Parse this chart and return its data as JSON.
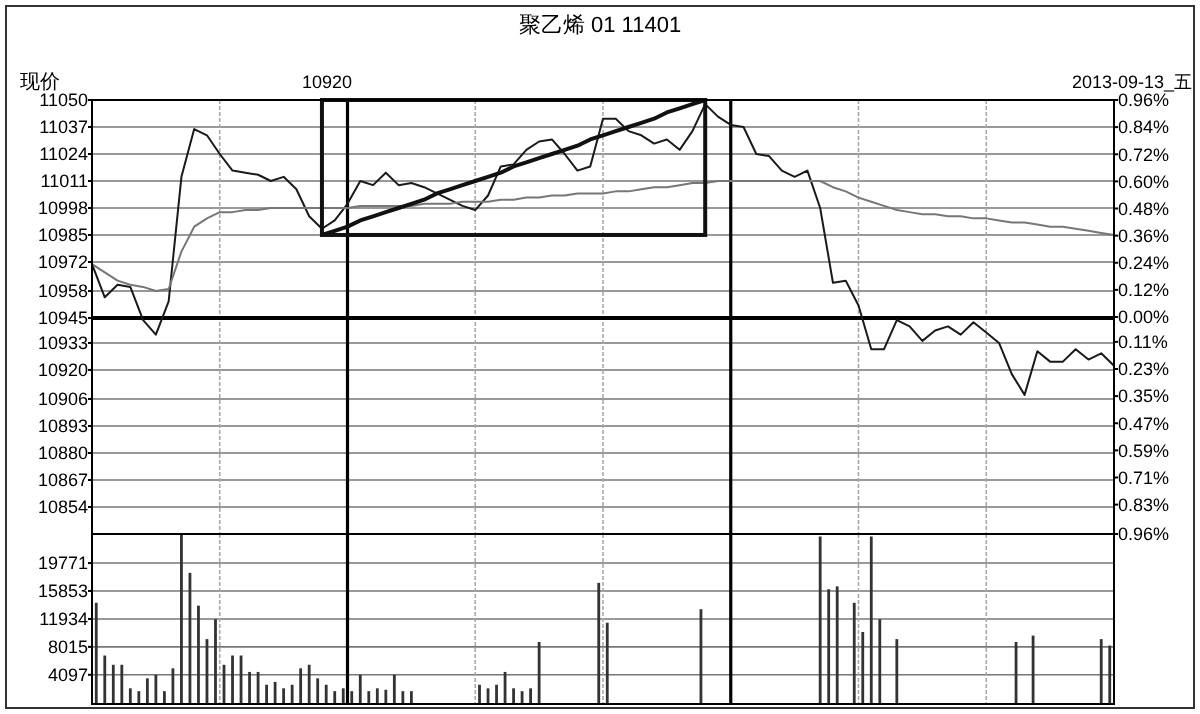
{
  "chart_data": [
    {
      "type": "line",
      "title": "聚乙烯 01 11401",
      "ylabel": "现价",
      "annotations": [
        "10920",
        "2013-09-13_五"
      ],
      "categories": [
        null,
        null,
        null,
        null,
        null,
        null,
        null,
        null,
        null,
        null,
        null,
        null,
        null,
        null,
        null,
        null,
        null,
        null,
        null,
        null,
        null,
        null,
        null,
        null,
        null,
        null,
        null,
        null,
        null,
        null,
        null,
        null,
        null,
        null,
        null,
        null,
        null,
        null,
        null,
        null,
        null,
        null,
        null,
        null,
        null,
        null,
        null,
        null,
        null,
        null,
        null,
        null,
        null,
        null,
        null,
        null,
        null,
        null,
        null,
        null,
        null,
        null,
        null,
        null,
        null,
        null,
        null,
        null,
        null,
        null,
        null,
        null,
        null,
        null,
        null,
        null,
        null,
        null,
        null,
        null,
        null
      ],
      "ylim": [
        10841,
        11050
      ],
      "yticks": [
        10854,
        10867,
        10880,
        10893,
        10906,
        10920,
        10933,
        10945,
        10958,
        10972,
        10985,
        10998,
        11011,
        11024,
        11037,
        11050
      ],
      "y2lim": [
        -0.96,
        0.96
      ],
      "y2ticks": [
        {
          "value": 0.96,
          "label": "0.96%"
        },
        {
          "value": 0.84,
          "label": "0.84%"
        },
        {
          "value": 0.72,
          "label": "0.72%"
        },
        {
          "value": 0.6,
          "label": "0.60%"
        },
        {
          "value": 0.48,
          "label": "0.48%"
        },
        {
          "value": 0.36,
          "label": "0.36%"
        },
        {
          "value": 0.24,
          "label": "0.24%"
        },
        {
          "value": 0.12,
          "label": "0.12%"
        },
        {
          "value": 0,
          "label": "0.00%"
        },
        {
          "value": -0.11,
          "label": "0.11%"
        },
        {
          "value": -0.23,
          "label": "0.23%"
        },
        {
          "value": -0.35,
          "label": "0.35%"
        },
        {
          "value": -0.47,
          "label": "0.47%"
        },
        {
          "value": -0.59,
          "label": "0.59%"
        },
        {
          "value": -0.71,
          "label": "0.71%"
        },
        {
          "value": -0.83,
          "label": "0.83%"
        },
        {
          "value": -0.96,
          "label": "0.96%"
        }
      ],
      "grid": true,
      "ref_lines": [
        {
          "axis": "y",
          "value": 10945,
          "color": "#000000"
        }
      ],
      "series": [
        {
          "color": "#1a1a1a",
          "values": [
            10971,
            10955,
            10961,
            10960,
            10944,
            10937,
            10953,
            11013,
            11036,
            11033,
            11024,
            11016,
            11015,
            11014,
            11011,
            11013,
            11007,
            10994,
            10988,
            10992,
            11000,
            11011,
            11009,
            11015,
            11009,
            11010,
            11008,
            11005,
            11002,
            10999,
            10997,
            11004,
            11018,
            11019,
            11026,
            11030,
            11031,
            11024,
            11016,
            11018,
            11041,
            11041,
            11035,
            11033,
            11029,
            11031,
            11026,
            11035,
            11048,
            11042,
            11038,
            11037,
            11024,
            11023,
            11016,
            11013,
            11016,
            10998,
            10962,
            10963,
            10951,
            10930,
            10930,
            10944,
            10941,
            10934,
            10939,
            10941,
            10937,
            10943,
            10938,
            10933,
            10918,
            10908,
            10929,
            10924,
            10924,
            10930,
            10925,
            10928,
            10922
          ]
        },
        {
          "color": "#777777",
          "values": [
            10971,
            10967,
            10963,
            10961,
            10960,
            10958,
            10959,
            10977,
            10989,
            10993,
            10996,
            10996,
            10997,
            10997,
            10998,
            10998,
            10998,
            10998,
            10998,
            10998,
            10998,
            10999,
            10999,
            10999,
            10999,
            10999,
            11000,
            11000,
            11000,
            11001,
            11001,
            11001,
            11002,
            11002,
            11003,
            11003,
            11004,
            11004,
            11005,
            11005,
            11005,
            11006,
            11006,
            11007,
            11008,
            11008,
            11009,
            11010,
            11010,
            11011,
            11011,
            11011,
            11011,
            11011,
            11011,
            11011,
            11011,
            11011,
            11008,
            11006,
            11003,
            11001,
            10999,
            10997,
            10996,
            10995,
            10995,
            10994,
            10994,
            10993,
            10993,
            10992,
            10991,
            10991,
            10990,
            10989,
            10989,
            10988,
            10987,
            10986,
            10985
          ]
        },
        {
          "type": "line",
          "color": "#111111",
          "values": [
            null,
            null,
            null,
            null,
            null,
            null,
            null,
            null,
            null,
            null,
            null,
            null,
            null,
            null,
            null,
            null,
            null,
            null,
            10985,
            10987,
            10989,
            10992,
            10994,
            10996,
            10998,
            11000,
            11002,
            11005,
            11007,
            11009,
            11011,
            11013,
            11015,
            11018,
            11020,
            11022,
            11024,
            11026,
            11028,
            11031,
            11033,
            11035,
            11037,
            11039,
            11041,
            11044,
            11046,
            11048,
            11050,
            null,
            null,
            null,
            null,
            null,
            null,
            null,
            null,
            null,
            null,
            null,
            null,
            null,
            null,
            null,
            null,
            null,
            null,
            null,
            null,
            null,
            null,
            null,
            null,
            null,
            null,
            null,
            null,
            null,
            null,
            null,
            null
          ]
        }
      ]
    },
    {
      "type": "bar",
      "color": "#333333",
      "categories": [
        null,
        null,
        null,
        null,
        null,
        null,
        null,
        null,
        null,
        null,
        null,
        null,
        null,
        null,
        null,
        null,
        null,
        null,
        null,
        null,
        null,
        null,
        null,
        null,
        null,
        null,
        null,
        null,
        null,
        null,
        null,
        null,
        null,
        null,
        null,
        null,
        null,
        null,
        null,
        null,
        null,
        null,
        null,
        null,
        null,
        null,
        null,
        null,
        null,
        null,
        null,
        null,
        null,
        null,
        null,
        null,
        null,
        null,
        null,
        null,
        null,
        null,
        null,
        null,
        null,
        null,
        null,
        null,
        null,
        null,
        null,
        null,
        null,
        null,
        null,
        null,
        null,
        null,
        null,
        null,
        null,
        null,
        null,
        null,
        null,
        null,
        null,
        null,
        null,
        null,
        null,
        null,
        null,
        null,
        null,
        null,
        null,
        null,
        null,
        null,
        null,
        null,
        null,
        null,
        null,
        null,
        null,
        null,
        null,
        null,
        null,
        null,
        null,
        null,
        null,
        null,
        null,
        null,
        null,
        null
      ],
      "ylim": [
        0,
        23850
      ],
      "yticks": [
        4097,
        8015,
        11934,
        15853,
        19771
      ],
      "grid": true,
      "values": [
        14200,
        6800,
        5500,
        5500,
        2200,
        1800,
        3600,
        4100,
        1800,
        5000,
        23800,
        18400,
        13800,
        9100,
        11900,
        5500,
        6800,
        6800,
        4500,
        4500,
        2700,
        3100,
        2200,
        2700,
        5000,
        5500,
        3600,
        2700,
        1800,
        2200,
        1800,
        4100,
        1800,
        2200,
        2000,
        4100,
        1800,
        1800,
        null,
        null,
        null,
        null,
        null,
        null,
        null,
        2700,
        2200,
        2700,
        4500,
        2200,
        1800,
        2200,
        8700,
        null,
        null,
        null,
        null,
        null,
        null,
        17000,
        11400,
        null,
        null,
        null,
        null,
        null,
        null,
        null,
        null,
        null,
        null,
        13300,
        null,
        null,
        null,
        null,
        null,
        null,
        null,
        null,
        null,
        null,
        null,
        null,
        null,
        23500,
        16100,
        16500,
        null,
        14200,
        10100,
        23500,
        11900,
        null,
        9100,
        null,
        null,
        null,
        null,
        null,
        null,
        null,
        null,
        null,
        null,
        null,
        null,
        null,
        8700,
        null,
        9600,
        null,
        null,
        null,
        null,
        null,
        null,
        null,
        9100,
        8200
      ]
    }
  ]
}
